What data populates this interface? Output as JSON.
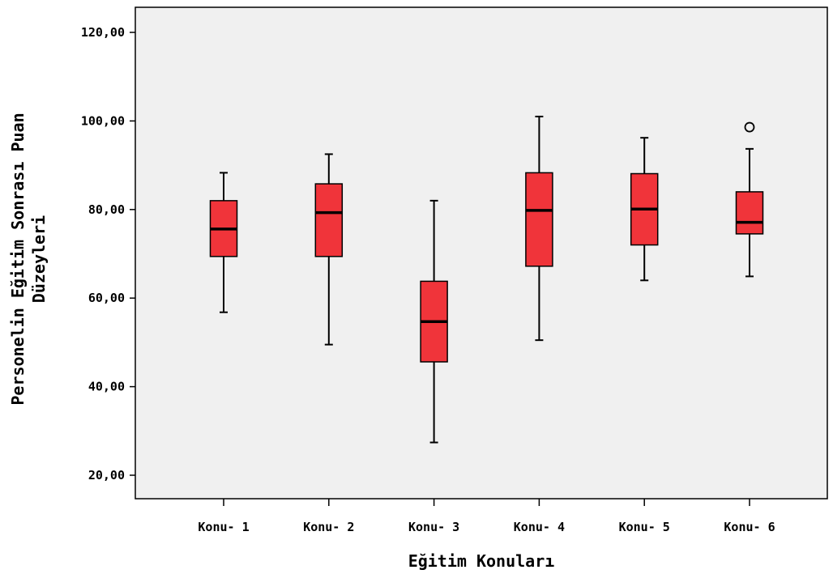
{
  "chart_data": {
    "type": "boxplot",
    "title": "",
    "xlabel": "Eğitim Konuları",
    "ylabel_line1": "Personelin Eğitim Sonrası Puan",
    "ylabel_line2": "Düzeyleri",
    "ylim": [
      15,
      125
    ],
    "yticks": [
      20,
      40,
      60,
      80,
      100,
      120
    ],
    "ytick_labels": [
      "20,00",
      "40,00",
      "60,00",
      "80,00",
      "100,00",
      "120,00"
    ],
    "categories": [
      "Konu- 1",
      "Konu- 2",
      "Konu- 3",
      "Konu- 4",
      "Konu- 5",
      "Konu- 6"
    ],
    "boxes": [
      {
        "category": "Konu- 1",
        "whisker_low": 56.8,
        "q1": 69.4,
        "median": 75.6,
        "q3": 82.0,
        "whisker_high": 88.3,
        "outliers": []
      },
      {
        "category": "Konu- 2",
        "whisker_low": 49.5,
        "q1": 69.4,
        "median": 79.3,
        "q3": 85.8,
        "whisker_high": 92.5,
        "outliers": []
      },
      {
        "category": "Konu- 3",
        "whisker_low": 27.4,
        "q1": 45.6,
        "median": 54.7,
        "q3": 63.8,
        "whisker_high": 82.0,
        "outliers": []
      },
      {
        "category": "Konu- 4",
        "whisker_low": 50.5,
        "q1": 67.2,
        "median": 79.8,
        "q3": 88.3,
        "whisker_high": 101.0,
        "outliers": []
      },
      {
        "category": "Konu- 5",
        "whisker_low": 64.0,
        "q1": 72.0,
        "median": 80.1,
        "q3": 88.1,
        "whisker_high": 96.2,
        "outliers": []
      },
      {
        "category": "Konu- 6",
        "whisker_low": 64.9,
        "q1": 74.5,
        "median": 77.1,
        "q3": 84.0,
        "whisker_high": 93.7,
        "outliers": [
          98.6
        ]
      }
    ],
    "box_color": "#f0343a",
    "plot_background": "#f0f0f0",
    "grid": false,
    "legend": "none"
  }
}
